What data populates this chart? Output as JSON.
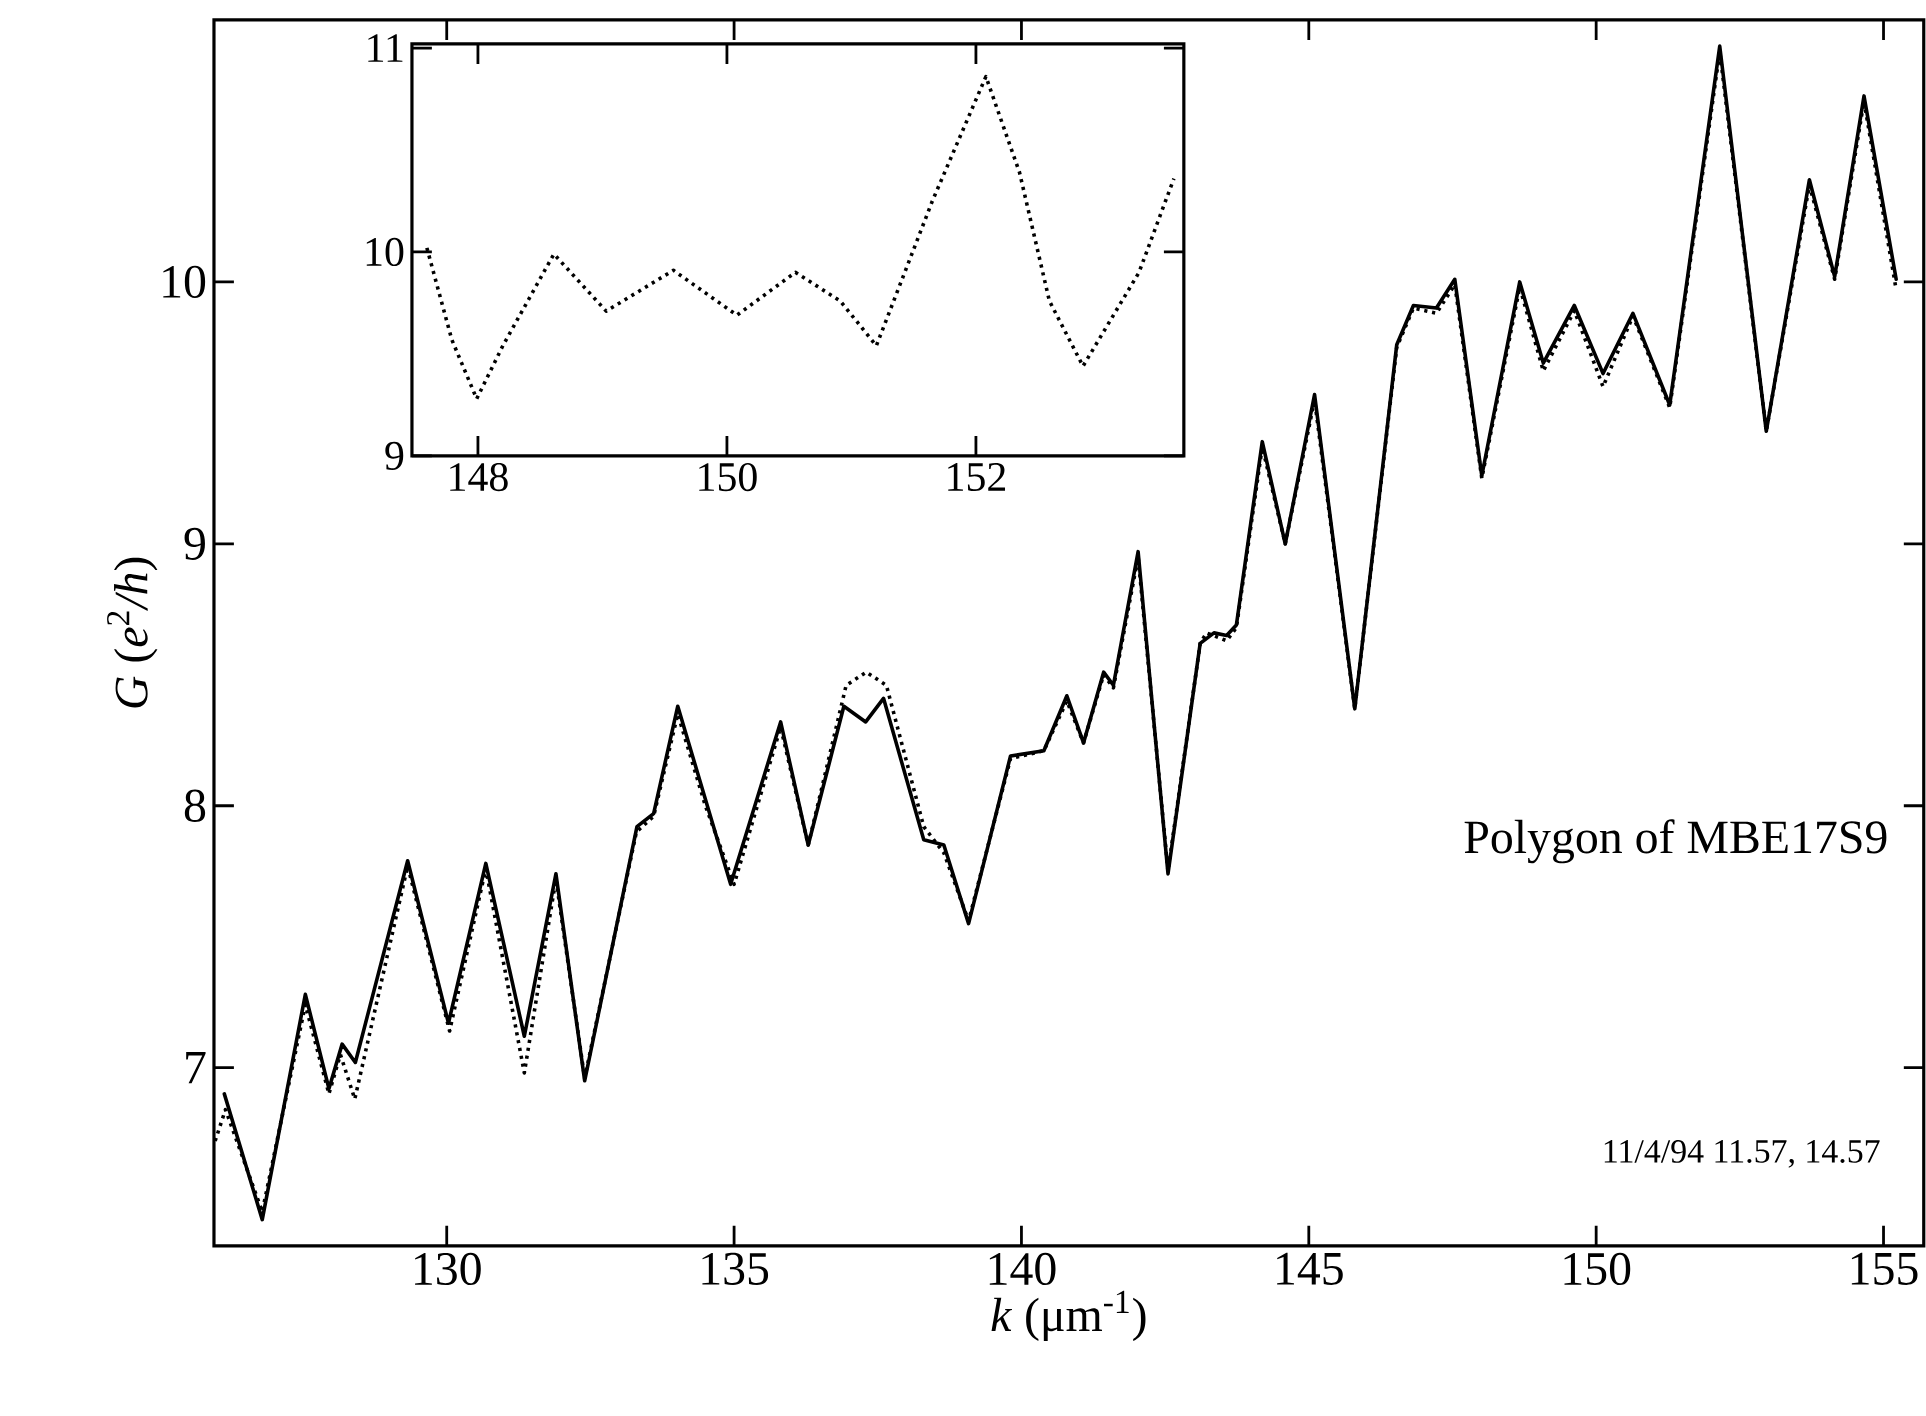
{
  "chart_data": [
    {
      "type": "line",
      "xlabel": "*k*  (μm$^{-1}$)",
      "ylabel": "*G*  (*e*$^{2}$*/h*)",
      "xlim": [
        125.95,
        155.7
      ],
      "ylim": [
        6.32,
        11.0
      ],
      "xticks": [
        130,
        135,
        140,
        145,
        150,
        155
      ],
      "yticks": [
        7,
        8,
        9,
        10
      ],
      "annotations": [
        "Polygon of MBE17S9",
        "11/4/94  11.57,  14.57"
      ],
      "series": [
        {
          "color": "#000000",
          "line_style": "solid",
          "x": [
            126.13,
            126.79,
            127.54,
            127.95,
            128.18,
            128.41,
            129.32,
            130.03,
            130.68,
            131.35,
            131.9,
            132.4,
            133.31,
            133.6,
            134.02,
            134.94,
            135.81,
            136.29,
            136.91,
            137.29,
            137.6,
            138.3,
            138.65,
            139.08,
            139.81,
            140.39,
            140.79,
            141.08,
            141.43,
            141.6,
            142.03,
            142.55,
            143.11,
            143.35,
            143.57,
            143.74,
            144.19,
            144.59,
            145.1,
            145.8,
            146.53,
            146.82,
            147.22,
            147.54,
            148.01,
            148.67,
            149.08,
            149.62,
            150.12,
            150.64,
            151.28,
            152.15,
            152.96,
            153.71,
            154.15,
            154.66,
            155.22
          ],
          "values": [
            6.9,
            6.42,
            7.28,
            6.92,
            7.09,
            7.02,
            7.79,
            7.17,
            7.78,
            7.12,
            7.74,
            6.95,
            7.92,
            7.97,
            8.38,
            7.7,
            8.32,
            7.85,
            8.38,
            8.32,
            8.41,
            7.87,
            7.85,
            7.55,
            8.19,
            8.21,
            8.42,
            8.24,
            8.51,
            8.46,
            8.97,
            7.74,
            8.62,
            8.66,
            8.65,
            8.69,
            9.39,
            9.0,
            9.57,
            8.37,
            9.76,
            9.91,
            9.9,
            10.01,
            9.26,
            10.0,
            9.69,
            9.91,
            9.65,
            9.88,
            9.53,
            10.9,
            9.43,
            10.39,
            10.02,
            10.71,
            10.01
          ]
        },
        {
          "color": "#000000",
          "line_style": "dotted",
          "x": [
            125.97,
            126.15,
            126.79,
            127.54,
            127.95,
            128.15,
            128.4,
            129.32,
            130.05,
            130.68,
            131.35,
            131.9,
            132.4,
            133.3,
            133.6,
            134.02,
            134.5,
            135.0,
            135.81,
            136.29,
            136.95,
            137.3,
            137.65,
            138.3,
            138.65,
            139.08,
            139.81,
            140.39,
            140.79,
            141.08,
            141.43,
            141.6,
            142.03,
            142.55,
            143.11,
            143.22,
            143.57,
            143.74,
            144.19,
            144.59,
            145.1,
            145.8,
            146.53,
            146.82,
            147.22,
            147.54,
            148.01,
            148.67,
            149.08,
            149.62,
            150.12,
            150.64,
            151.28,
            152.15,
            152.96,
            153.71,
            154.15,
            154.66,
            155.22
          ],
          "values": [
            6.72,
            6.84,
            6.45,
            7.24,
            6.9,
            7.05,
            6.88,
            7.77,
            7.14,
            7.76,
            6.98,
            7.72,
            6.96,
            7.9,
            7.96,
            8.35,
            8.0,
            7.7,
            8.3,
            7.85,
            8.46,
            8.51,
            8.46,
            7.92,
            7.82,
            7.56,
            8.18,
            8.21,
            8.4,
            8.24,
            8.5,
            8.45,
            8.95,
            7.75,
            8.62,
            8.66,
            8.63,
            8.68,
            9.37,
            9.0,
            9.55,
            8.37,
            9.75,
            9.9,
            9.88,
            9.99,
            9.25,
            9.98,
            9.66,
            9.89,
            9.6,
            9.87,
            9.52,
            10.88,
            9.43,
            10.37,
            10.01,
            10.69,
            9.97
          ]
        }
      ]
    },
    {
      "type": "line",
      "xlim": [
        147.47,
        153.67
      ],
      "ylim": [
        9,
        11.02
      ],
      "xticks": [
        148,
        150,
        152
      ],
      "yticks": [
        9,
        10,
        11
      ],
      "series": [
        {
          "color": "#000000",
          "line_style": "dotted",
          "x": [
            147.59,
            147.79,
            147.99,
            148.2,
            148.61,
            149.03,
            149.57,
            150.08,
            150.55,
            150.91,
            151.2,
            151.65,
            152.08,
            152.35,
            152.59,
            152.86,
            153.31,
            153.59
          ],
          "values": [
            10.02,
            9.57,
            9.28,
            9.54,
            9.99,
            9.71,
            9.91,
            9.69,
            9.9,
            9.76,
            9.54,
            10.25,
            10.86,
            10.39,
            9.76,
            9.44,
            9.9,
            10.36
          ]
        }
      ]
    }
  ]
}
